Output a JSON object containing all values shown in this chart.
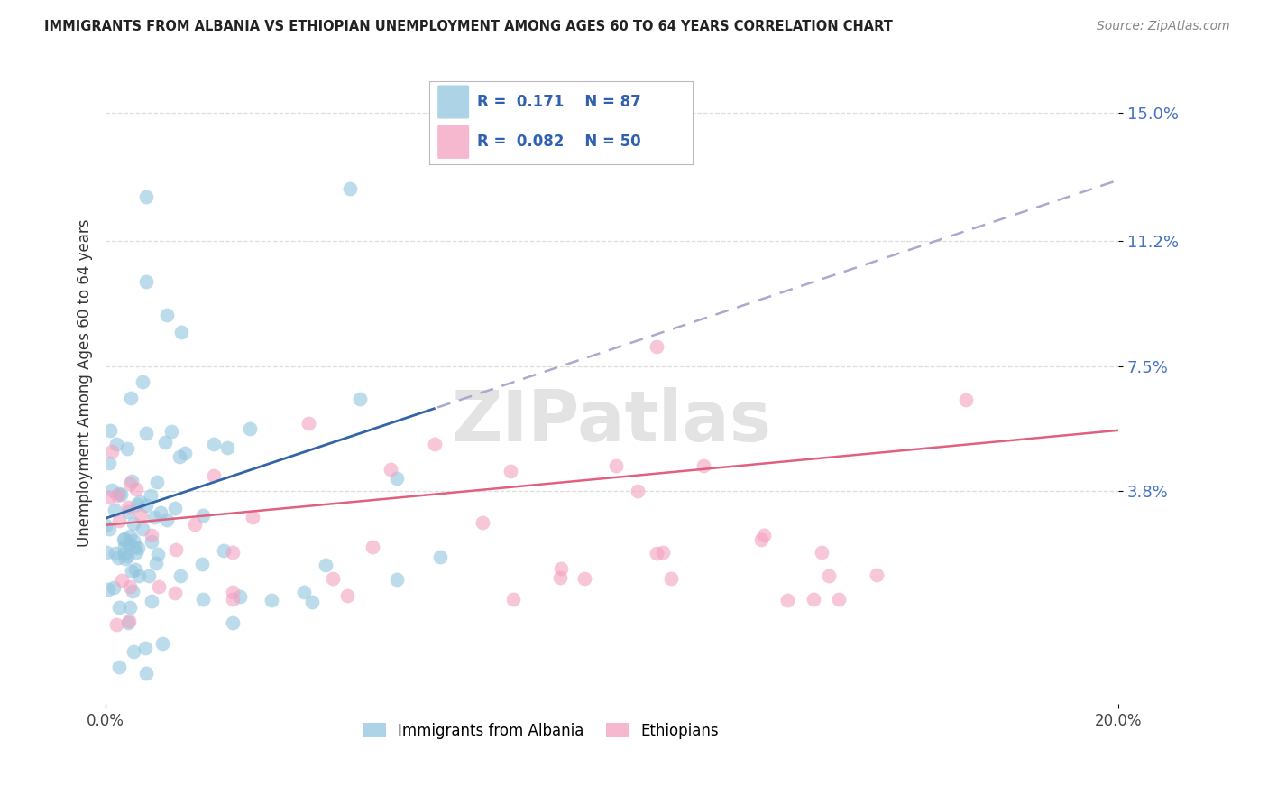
{
  "title": "IMMIGRANTS FROM ALBANIA VS ETHIOPIAN UNEMPLOYMENT AMONG AGES 60 TO 64 YEARS CORRELATION CHART",
  "source": "Source: ZipAtlas.com",
  "ylabel": "Unemployment Among Ages 60 to 64 years",
  "xlim": [
    0.0,
    0.2
  ],
  "ylim": [
    -0.025,
    0.165
  ],
  "yticks": [
    0.038,
    0.075,
    0.112,
    0.15
  ],
  "ytick_labels": [
    "3.8%",
    "7.5%",
    "11.2%",
    "15.0%"
  ],
  "blue_color": "#92c5de",
  "pink_color": "#f4a0c0",
  "trend_blue_solid": "#3465a4",
  "trend_blue_dash": "#aaaacc",
  "trend_pink": "#e06080",
  "watermark_color": "#cccccc",
  "grid_color": "#dddddd"
}
